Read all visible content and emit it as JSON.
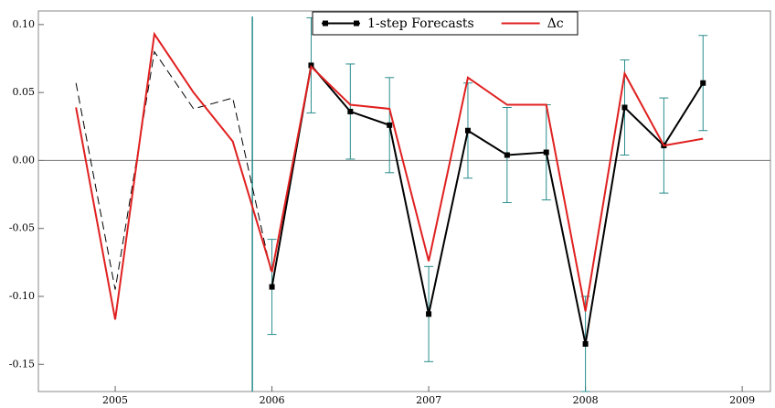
{
  "chart_data": {
    "type": "line",
    "xlim": [
      2004.51,
      2009.18
    ],
    "xticks": [
      2005,
      2006,
      2007,
      2008,
      2009
    ],
    "ylim": [
      -0.17,
      0.11
    ],
    "yticks": [
      {
        "value": -0.15,
        "label": "-0.15"
      },
      {
        "value": -0.1,
        "label": "-0.10"
      },
      {
        "value": -0.05,
        "label": "-0.05"
      },
      {
        "value": 0,
        "label": "0.00"
      },
      {
        "value": 0.05,
        "label": "0.05"
      },
      {
        "value": 0.1,
        "label": "0.10"
      }
    ],
    "forecast_start": 2005.875,
    "series": [
      {
        "color": "#000000",
        "dashed": true,
        "x": [
          2004.75,
          2005.0,
          2005.25,
          2005.5,
          2005.75,
          2006.0
        ],
        "values": [
          0.057,
          -0.095,
          0.08,
          0.038,
          0.046,
          -0.085
        ]
      },
      {
        "name": "1-step Forecasts",
        "color": "#000000",
        "markers": true,
        "error_color": "#2a8c8c",
        "x": [
          2006.0,
          2006.25,
          2006.5,
          2006.75,
          2007.0,
          2007.25,
          2007.5,
          2007.75,
          2008.0,
          2008.25,
          2008.5,
          2008.75
        ],
        "values": [
          -0.093,
          0.07,
          0.036,
          0.026,
          -0.113,
          0.022,
          0.004,
          0.006,
          -0.135,
          0.039,
          0.011,
          0.057
        ],
        "errors": [
          0.035,
          0.035,
          0.035,
          0.035,
          0.035,
          0.035,
          0.035,
          0.035,
          0.035,
          0.035,
          0.035,
          0.035
        ]
      },
      {
        "name": "Δc",
        "color": "#e02020",
        "x": [
          2004.75,
          2005.0,
          2005.25,
          2005.5,
          2005.75,
          2006.0,
          2006.25,
          2006.5,
          2006.75,
          2007.0,
          2007.25,
          2007.5,
          2007.75,
          2008.0,
          2008.25,
          2008.5,
          2008.75
        ],
        "values": [
          0.039,
          -0.117,
          0.093,
          0.05,
          0.014,
          -0.082,
          0.069,
          0.041,
          0.038,
          -0.074,
          0.061,
          0.041,
          0.041,
          -0.111,
          0.064,
          0.011,
          0.016
        ]
      }
    ]
  }
}
